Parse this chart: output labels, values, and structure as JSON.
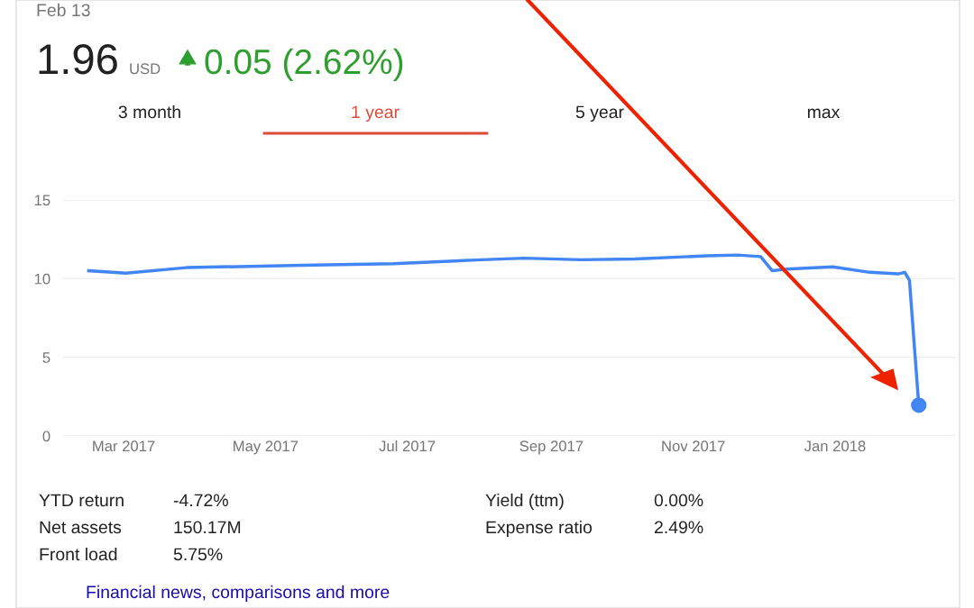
{
  "chart_data": {
    "type": "line",
    "title": "1.96 USD",
    "subtitle": "Feb 13",
    "annotations": [
      "0.05 (2.62%)",
      "3 month",
      "1 year",
      "5 year",
      "max",
      "YTD return",
      "-4.72%",
      "Net assets",
      "150.17M",
      "Front load",
      "5.75%",
      "Yield (ttm)",
      "0.00%",
      "Expense ratio",
      "2.49%",
      "Financial news, comparisons and more"
    ],
    "series": [
      {
        "color": "#4285f4",
        "x": [
          "2017-02-14",
          "2017-03-02",
          "2017-03-28",
          "2017-05-17",
          "2017-06-25",
          "2017-08-02",
          "2017-08-20",
          "2017-09-14",
          "2017-10-07",
          "2017-11-07",
          "2017-11-20",
          "2017-11-30",
          "2017-12-05",
          "2017-12-11",
          "2017-12-31",
          "2018-01-16",
          "2018-01-28",
          "2018-01-31",
          "2018-02-02",
          "2018-02-06"
        ],
        "values": [
          10.5,
          10.35,
          10.7,
          10.85,
          10.95,
          11.2,
          11.3,
          11.2,
          11.25,
          11.45,
          11.5,
          11.4,
          10.5,
          10.6,
          10.75,
          10.4,
          10.3,
          10.4,
          9.9,
          1.96
        ]
      },
      {
        "type": "scatter",
        "color": "#4285f4",
        "x": [
          "2018-02-06"
        ],
        "values": [
          1.96
        ],
        "marker": "circle"
      }
    ],
    "xlim": [
      "2017-02-03",
      "2018-02-22"
    ],
    "xticks": [
      {
        "value": "2017-03-01",
        "label": "Mar 2017"
      },
      {
        "value": "2017-05-01",
        "label": "May 2017"
      },
      {
        "value": "2017-07-01",
        "label": "Jul 2017"
      },
      {
        "value": "2017-09-01",
        "label": "Sep 2017"
      },
      {
        "value": "2017-11-01",
        "label": "Nov 2017"
      },
      {
        "value": "2018-01-01",
        "label": "Jan 2018"
      }
    ],
    "ylim": [
      0,
      15
    ],
    "yticks": [
      0,
      5,
      10,
      15
    ],
    "grid": "y"
  }
}
